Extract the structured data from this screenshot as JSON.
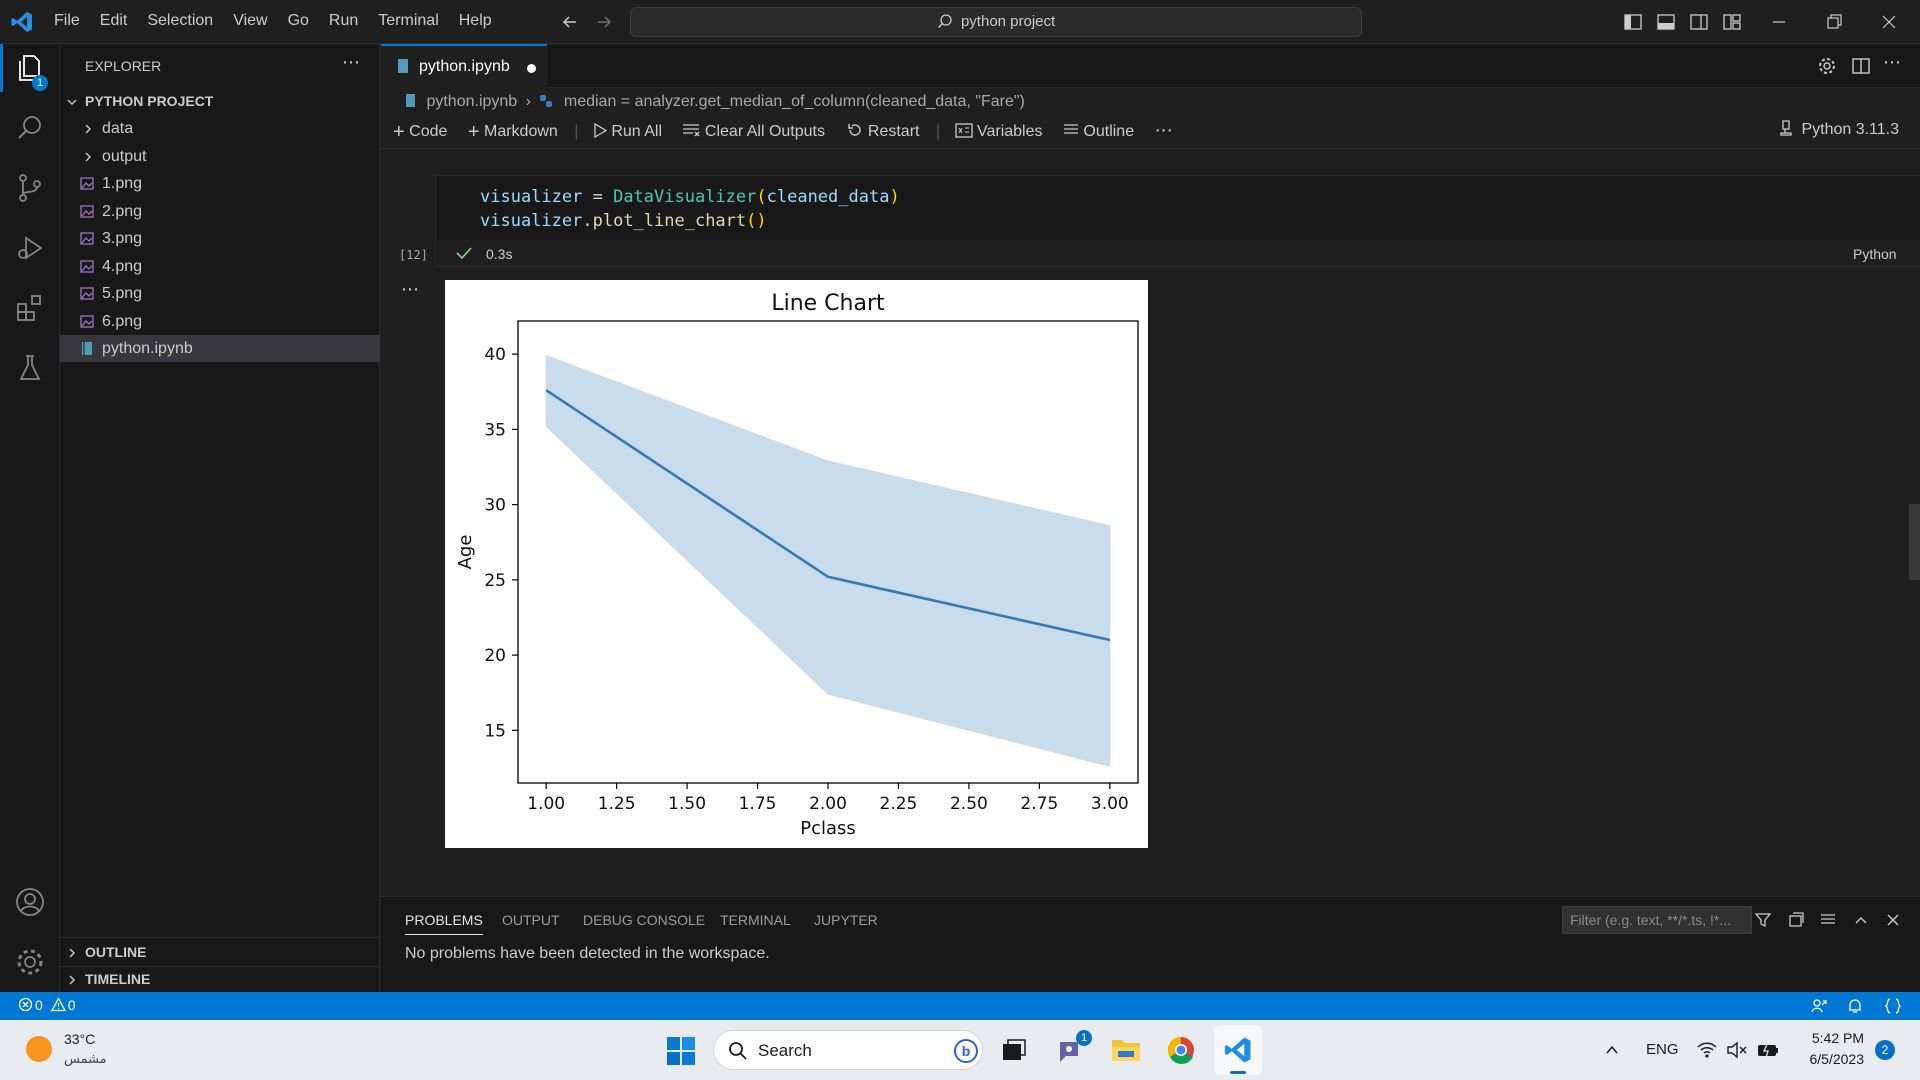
{
  "menu": [
    "File",
    "Edit",
    "Selection",
    "View",
    "Go",
    "Run",
    "Terminal",
    "Help"
  ],
  "command_center": "python project",
  "sidebar": {
    "title": "EXPLORER",
    "project": "PYTHON PROJECT",
    "items": [
      {
        "label": "data",
        "type": "folder"
      },
      {
        "label": "output",
        "type": "folder"
      },
      {
        "label": "1.png",
        "type": "image"
      },
      {
        "label": "2.png",
        "type": "image"
      },
      {
        "label": "3.png",
        "type": "image"
      },
      {
        "label": "4.png",
        "type": "image"
      },
      {
        "label": "5.png",
        "type": "image"
      },
      {
        "label": "6.png",
        "type": "image"
      },
      {
        "label": "python.ipynb",
        "type": "notebook"
      }
    ],
    "outline": "OUTLINE",
    "timeline": "TIMELINE",
    "explorer_badge": "1"
  },
  "tab": {
    "label": "python.ipynb"
  },
  "breadcrumb": {
    "file": "python.ipynb",
    "symbol": "median = analyzer.get_median_of_column(cleaned_data, \"Fare\")"
  },
  "toolbar": {
    "code": "Code",
    "markdown": "Markdown",
    "run_all": "Run All",
    "clear_outputs": "Clear All Outputs",
    "restart": "Restart",
    "variables": "Variables",
    "outline": "Outline",
    "kernel": "Python 3.11.3"
  },
  "cell": {
    "exec_count": "[12]",
    "duration": "0.3s",
    "language": "Python",
    "line1": {
      "var": "visualizer",
      "op": " = ",
      "cls": "DataVisualizer",
      "open": "(",
      "arg": "cleaned_data",
      "close": ")"
    },
    "line2": {
      "var": "visualizer",
      "dot": ".",
      "fn": "plot_line_chart",
      "paren": "()"
    }
  },
  "chart_data": {
    "type": "line",
    "title": "Line Chart",
    "xlabel": "Pclass",
    "ylabel": "Age",
    "x": [
      1.0,
      2.0,
      3.0
    ],
    "y": [
      37.6,
      25.2,
      21.0
    ],
    "ci_lower": [
      35.2,
      17.4,
      12.6
    ],
    "ci_upper": [
      39.9,
      32.9,
      28.6
    ],
    "xlim": [
      0.9,
      3.1
    ],
    "ylim": [
      11.5,
      42.2
    ],
    "xticks": [
      "1.00",
      "1.25",
      "1.50",
      "1.75",
      "2.00",
      "2.25",
      "2.50",
      "2.75",
      "3.00"
    ],
    "xtick_values": [
      1.0,
      1.25,
      1.5,
      1.75,
      2.0,
      2.25,
      2.5,
      2.75,
      3.0
    ],
    "yticks": [
      "15",
      "20",
      "25",
      "30",
      "35",
      "40"
    ],
    "ytick_values": [
      15,
      20,
      25,
      30,
      35,
      40
    ],
    "line_color": "#3478b5",
    "band_color": "#c9dcec"
  },
  "panel": {
    "tabs": [
      "PROBLEMS",
      "OUTPUT",
      "DEBUG CONSOLE",
      "TERMINAL",
      "JUPYTER"
    ],
    "filter_placeholder": "Filter (e.g. text, **/*.ts, !*...",
    "message": "No problems have been detected in the workspace."
  },
  "status": {
    "errors": "0",
    "warnings": "0"
  },
  "taskbar": {
    "temperature": "33°C",
    "weather": "مشمس",
    "search": "Search",
    "teams_badge": "1",
    "language": "ENG",
    "time": "5:42 PM",
    "date": "6/5/2023",
    "notification_count": "2"
  },
  "colors": {
    "accent": "#0078d4",
    "status_bar": "#0078d4",
    "background": "#1f1f1f"
  }
}
